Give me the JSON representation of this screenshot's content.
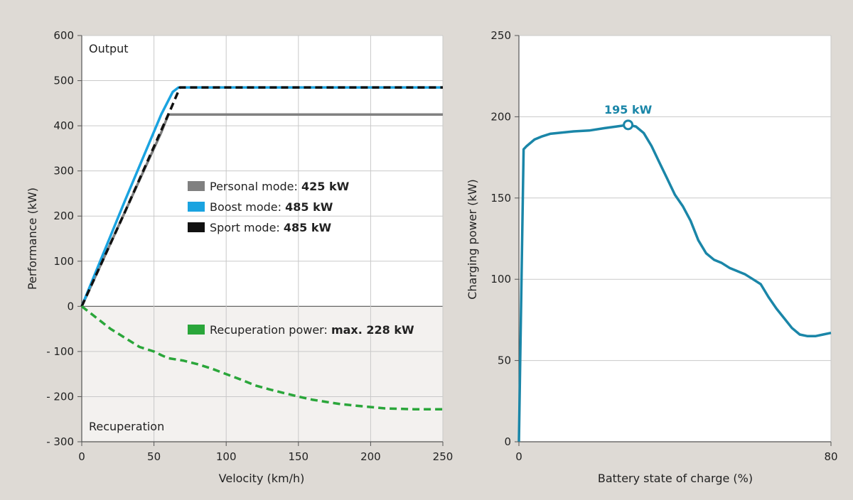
{
  "chart_data": [
    {
      "type": "line",
      "xlabel": "Velocity (km/h)",
      "ylabel": "Performance (kW)",
      "xlim": [
        0,
        250
      ],
      "ylim": [
        -300,
        600
      ],
      "x_ticks": [
        0,
        50,
        100,
        150,
        200,
        250
      ],
      "y_ticks": [
        "600",
        "500",
        "400",
        "300",
        "200",
        "100",
        "0",
        "- 100",
        "- 200",
        "- 300"
      ],
      "y_tick_values": [
        600,
        500,
        400,
        300,
        200,
        100,
        0,
        -100,
        -200,
        -300
      ],
      "grid": true,
      "region_labels": {
        "top": "Output",
        "bottom": "Recuperation"
      },
      "series": [
        {
          "name": "Personal mode",
          "value_label": "425 kW",
          "color": "#808080",
          "style": "solid",
          "points": [
            [
              0,
              0
            ],
            [
              30,
              210
            ],
            [
              55,
              385
            ],
            [
              60,
              425
            ],
            [
              250,
              425
            ]
          ]
        },
        {
          "name": "Boost mode",
          "value_label": "485 kW",
          "color": "#1aa3e0",
          "style": "solid",
          "points": [
            [
              0,
              0
            ],
            [
              30,
              235
            ],
            [
              55,
              425
            ],
            [
              63,
              475
            ],
            [
              67,
              485
            ],
            [
              250,
              485
            ]
          ]
        },
        {
          "name": "Sport mode",
          "value_label": "485 kW",
          "color": "#111111",
          "style": "dashed",
          "points": [
            [
              0,
              0
            ],
            [
              30,
              210
            ],
            [
              55,
              390
            ],
            [
              62,
              440
            ],
            [
              68,
              485
            ],
            [
              250,
              485
            ]
          ]
        },
        {
          "name": "Recuperation power",
          "value_label": "max. 228 kW",
          "color": "#2aa63a",
          "style": "dashed",
          "points": [
            [
              0,
              0
            ],
            [
              10,
              -25
            ],
            [
              20,
              -50
            ],
            [
              30,
              -70
            ],
            [
              40,
              -90
            ],
            [
              50,
              -100
            ],
            [
              55,
              -108
            ],
            [
              60,
              -115
            ],
            [
              70,
              -120
            ],
            [
              80,
              -128
            ],
            [
              90,
              -138
            ],
            [
              100,
              -150
            ],
            [
              110,
              -162
            ],
            [
              120,
              -175
            ],
            [
              130,
              -184
            ],
            [
              140,
              -192
            ],
            [
              150,
              -200
            ],
            [
              160,
              -207
            ],
            [
              170,
              -212
            ],
            [
              180,
              -217
            ],
            [
              190,
              -220
            ],
            [
              200,
              -223
            ],
            [
              210,
              -226
            ],
            [
              220,
              -227
            ],
            [
              230,
              -228
            ],
            [
              250,
              -228
            ]
          ]
        }
      ],
      "legend": "center"
    },
    {
      "type": "line",
      "xlabel": "Battery state of charge (%)",
      "ylabel": "Charging power (kW)",
      "xlim": [
        0,
        80
      ],
      "ylim": [
        0,
        250
      ],
      "x_ticks": [
        0,
        80
      ],
      "y_ticks": [
        0,
        50,
        100,
        150,
        200,
        250
      ],
      "grid": true,
      "annotation": {
        "text": "195 kW",
        "x": 28,
        "y": 195
      },
      "series": [
        {
          "name": "",
          "color": "#1a86a8",
          "points": [
            [
              0,
              0
            ],
            [
              1.2,
              180
            ],
            [
              2,
              182
            ],
            [
              4,
              186
            ],
            [
              6,
              188
            ],
            [
              8,
              189.5
            ],
            [
              10,
              190
            ],
            [
              14,
              191
            ],
            [
              18,
              191.5
            ],
            [
              22,
              193
            ],
            [
              25,
              194
            ],
            [
              28,
              195
            ],
            [
              30,
              194
            ],
            [
              32,
              190
            ],
            [
              34,
              182
            ],
            [
              36,
              172
            ],
            [
              38,
              162
            ],
            [
              40,
              152
            ],
            [
              42,
              145
            ],
            [
              44,
              136
            ],
            [
              46,
              124
            ],
            [
              48,
              116
            ],
            [
              50,
              112
            ],
            [
              52,
              110
            ],
            [
              54,
              107
            ],
            [
              56,
              105
            ],
            [
              58,
              103
            ],
            [
              60,
              100
            ],
            [
              62,
              97
            ],
            [
              64,
              89
            ],
            [
              66,
              82
            ],
            [
              68,
              76
            ],
            [
              70,
              70
            ],
            [
              72,
              66
            ],
            [
              74,
              65
            ],
            [
              76,
              65
            ],
            [
              78,
              66
            ],
            [
              80,
              67
            ]
          ]
        }
      ]
    }
  ]
}
